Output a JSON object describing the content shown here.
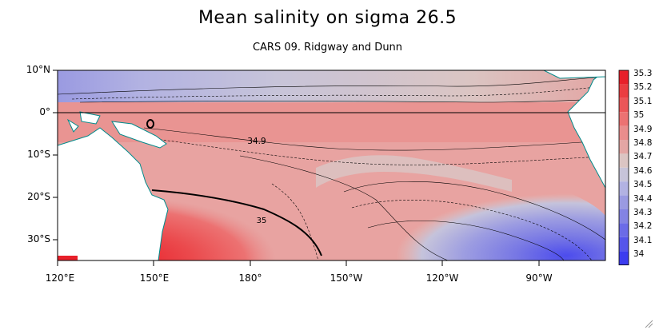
{
  "title": "Mean salinity on sigma 26.5",
  "subtitle": "CARS 09. Ridgway and Dunn",
  "y_labels": [
    "10°N",
    "0°",
    "10°S",
    "20°S",
    "30°S"
  ],
  "x_labels": [
    "120°E",
    "150°E",
    "180°",
    "150°W",
    "120°W",
    "90°W"
  ],
  "colorbar": {
    "labels": [
      "35.3",
      "35.2",
      "35.1",
      "35",
      "34.9",
      "34.8",
      "34.7",
      "34.6",
      "34.5",
      "34.4",
      "34.3",
      "34.2",
      "34.1",
      "34"
    ],
    "colors": [
      "#e8202a",
      "#ea3d41",
      "#eb5658",
      "#ec7272",
      "#e98d8c",
      "#e3a6a4",
      "#dbc5c3",
      "#c7c4d9",
      "#b2b2e2",
      "#9a9ae1",
      "#8383e3",
      "#6b6be7",
      "#5555ea",
      "#3c3cef"
    ]
  },
  "annotations": [
    "34.9",
    "35"
  ]
}
